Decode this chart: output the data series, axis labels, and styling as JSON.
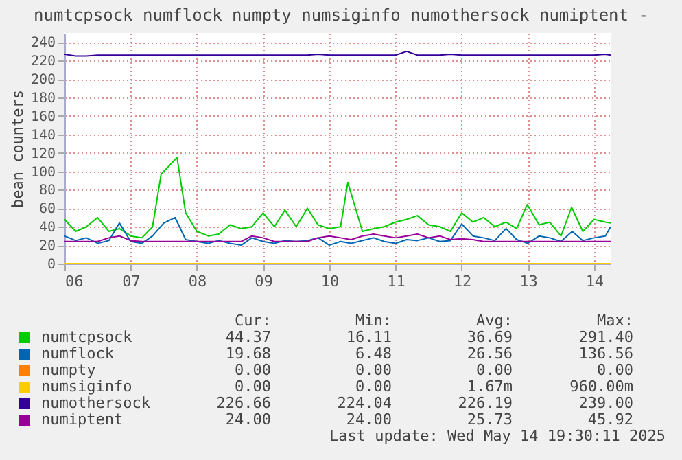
{
  "chart_data": {
    "type": "line",
    "title": "numtcpsock numflock numpty numsiginfo numothersock numiptent -",
    "ylabel": "bean counters",
    "x": [
      6,
      6.17,
      6.33,
      6.5,
      6.67,
      6.83,
      7,
      7.17,
      7.33,
      7.5,
      7.67,
      7.83,
      8,
      8.17,
      8.33,
      8.5,
      8.67,
      8.83,
      9,
      9.17,
      9.33,
      9.5,
      9.67,
      9.83,
      10,
      10.17,
      10.33,
      10.5,
      10.67,
      10.83,
      11,
      11.17,
      11.33,
      11.5,
      11.67,
      11.83,
      12,
      12.17,
      12.33,
      12.5,
      12.67,
      12.83,
      13,
      13.17,
      13.33,
      13.5,
      13.67,
      13.83,
      14,
      14.17,
      14.25
    ],
    "series": [
      {
        "name": "numtcpsock",
        "color": "#00cc00",
        "x": [
          6,
          6.17,
          6.33,
          6.5,
          6.67,
          6.83,
          7,
          7.17,
          7.33,
          7.46,
          7.7,
          7.83,
          8,
          8.17,
          8.33,
          8.5,
          8.67,
          8.83,
          9,
          9.17,
          9.33,
          9.5,
          9.67,
          9.83,
          10,
          10.17,
          10.28,
          10.5,
          10.67,
          10.83,
          11,
          11.17,
          11.33,
          11.5,
          11.67,
          11.83,
          12,
          12.17,
          12.33,
          12.5,
          12.67,
          12.83,
          12.99,
          13.17,
          13.33,
          13.5,
          13.66,
          13.83,
          14,
          14.17,
          14.25
        ],
        "values": [
          48,
          35,
          40,
          50,
          35,
          38,
          30,
          28,
          40,
          97,
          115,
          55,
          35,
          30,
          32,
          42,
          38,
          40,
          55,
          40,
          58,
          40,
          60,
          42,
          38,
          40,
          88,
          35,
          38,
          40,
          45,
          48,
          52,
          42,
          40,
          35,
          55,
          45,
          50,
          40,
          45,
          38,
          64,
          42,
          45,
          30,
          61,
          35,
          48,
          45,
          44
        ]
      },
      {
        "name": "numflock",
        "color": "#0066b3",
        "values": [
          30,
          25,
          28,
          22,
          25,
          44,
          24,
          22,
          30,
          44,
          50,
          26,
          24,
          22,
          25,
          22,
          20,
          28,
          24,
          22,
          25,
          24,
          25,
          28,
          20,
          24,
          22,
          25,
          28,
          24,
          22,
          26,
          25,
          28,
          24,
          25,
          43,
          30,
          28,
          25,
          38,
          26,
          22,
          30,
          28,
          24,
          35,
          25,
          28,
          30,
          40
        ]
      },
      {
        "name": "numpty",
        "color": "#ff8000",
        "values": [
          null,
          null,
          null,
          null,
          null,
          null,
          null,
          null,
          null,
          null,
          null,
          null,
          null,
          null,
          null,
          null,
          null,
          null,
          null,
          null,
          null,
          null,
          null,
          null,
          null,
          null,
          null,
          null,
          null,
          null,
          null,
          null,
          null,
          null,
          null,
          null,
          null,
          null,
          null,
          null,
          null,
          null,
          null,
          null,
          null,
          null,
          null,
          null,
          null,
          null,
          null
        ]
      },
      {
        "name": "numsiginfo",
        "color": "#ffcc00",
        "values": [
          0,
          0,
          0,
          0,
          0,
          0,
          0,
          0,
          0,
          0,
          0,
          0,
          0,
          0,
          0,
          0,
          0,
          0,
          0,
          0,
          0,
          0,
          0,
          0,
          0,
          0,
          0,
          0,
          0,
          0,
          0,
          0,
          0,
          0,
          0,
          0,
          0,
          0,
          0,
          0,
          0,
          0,
          0,
          0,
          0,
          0,
          0,
          0,
          0,
          0,
          0
        ]
      },
      {
        "name": "numothersock",
        "color": "#330099",
        "values": [
          227,
          225,
          225,
          226,
          226,
          226,
          226,
          226,
          226,
          226,
          226,
          226,
          226,
          226,
          226,
          226,
          226,
          226,
          226,
          226,
          226,
          226,
          226,
          227,
          226,
          226,
          226,
          226,
          226,
          226,
          226,
          230,
          226,
          226,
          226,
          227,
          226,
          226,
          226,
          226,
          226,
          226,
          226,
          226,
          226,
          226,
          226,
          226,
          226,
          227,
          226
        ]
      },
      {
        "name": "numiptent",
        "color": "#990099",
        "values": [
          24,
          24,
          24,
          24,
          28,
          30,
          25,
          24,
          24,
          24,
          24,
          24,
          24,
          24,
          24,
          24,
          24,
          30,
          28,
          24,
          24,
          24,
          24,
          28,
          30,
          28,
          26,
          30,
          32,
          30,
          28,
          30,
          32,
          28,
          30,
          26,
          27,
          26,
          24,
          24,
          24,
          24,
          24,
          24,
          24,
          24,
          24,
          24,
          24,
          24,
          24
        ]
      }
    ],
    "xlim": [
      6,
      14.25
    ],
    "xticks": [
      {
        "value": 6,
        "label": "06"
      },
      {
        "value": 7,
        "label": "07"
      },
      {
        "value": 8,
        "label": "08"
      },
      {
        "value": 9,
        "label": "09"
      },
      {
        "value": 10,
        "label": "10"
      },
      {
        "value": 11,
        "label": "11"
      },
      {
        "value": 12,
        "label": "12"
      },
      {
        "value": 13,
        "label": "13"
      },
      {
        "value": 14,
        "label": "14"
      }
    ],
    "ylim": [
      0,
      250
    ],
    "yticks": [
      0,
      20,
      40,
      60,
      80,
      100,
      120,
      140,
      160,
      180,
      200,
      220,
      240
    ],
    "grid": true,
    "legend": "bottom",
    "annotations": [
      "Cur:",
      "Min:",
      "Avg:",
      "Max:",
      "44.37",
      "16.11",
      "36.69",
      "291.40",
      "19.68",
      "6.48",
      "26.56",
      "136.56",
      "0.00",
      "0.00",
      "0.00",
      "0.00",
      "0.00",
      "0.00",
      "1.67m",
      "960.00m",
      "226.66",
      "224.04",
      "226.19",
      "239.00",
      "24.00",
      "24.00",
      "25.73",
      "45.92",
      "Last update: Wed May 14 19:30:11 2025"
    ]
  }
}
